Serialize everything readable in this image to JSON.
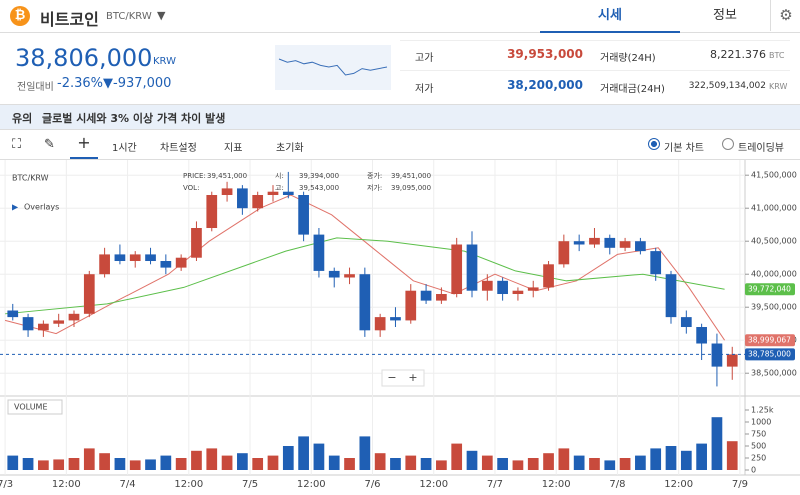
{
  "header": {
    "name": "비트코인",
    "pair": "BTC/KRW",
    "tabs": [
      "시세",
      "정보"
    ]
  },
  "summary": {
    "price": "38,806,000",
    "unit": "KRW",
    "change_label": "전일대비",
    "change_rate": "-2.36%",
    "change_amount": "▼-937,000",
    "sparkline": [
      39.2,
      39.1,
      39.15,
      39.05,
      39.1,
      39.0,
      38.95,
      39.0,
      38.7,
      38.75,
      38.9,
      38.85,
      38.9,
      38.95
    ],
    "stats": [
      {
        "label": "고가",
        "value": "39,953,000"
      },
      {
        "label": "저가",
        "value": "38,200,000"
      },
      {
        "label": "거래량(24H)",
        "value": "8,221.376",
        "unit": "BTC"
      },
      {
        "label": "거래대금(24H)",
        "value": "322,509,134,002",
        "unit": "KRW"
      }
    ]
  },
  "notice": {
    "tag": "유의",
    "text": "글로벌 시세와 3% 이상 가격 차이 발생"
  },
  "toolbar": {
    "interval": "1시간",
    "items": [
      "차트설정",
      "지표",
      "초기화"
    ],
    "modes": [
      "기본 차트",
      "트레이딩뷰"
    ]
  },
  "chart_data": {
    "type": "candlestick",
    "title": "BTC/KRW",
    "overlays_label": "Overlays",
    "volume_label": "VOLUME",
    "readout": [
      {
        "label": "PRICE:",
        "value": "39,451,000"
      },
      {
        "label": "시:",
        "value": "39,394,000"
      },
      {
        "label": "종가:",
        "value": "39,451,000"
      },
      {
        "label": "VOL:"
      },
      {
        "label": "고:",
        "value": "39,543,000"
      },
      {
        "label": "저가:",
        "value": "39,095,000"
      }
    ],
    "up_color": "#c84a3c",
    "down_color": "#1f5fb4",
    "x": [
      0,
      3,
      6,
      9,
      12,
      15,
      18,
      21,
      24,
      27,
      30,
      33,
      36,
      39,
      42,
      45,
      48,
      51,
      54,
      57,
      60,
      63,
      66,
      69,
      72,
      75,
      78,
      81,
      84,
      87,
      90,
      93,
      96,
      99,
      102,
      105,
      108,
      111,
      114,
      117,
      120,
      123,
      126,
      129,
      132,
      135,
      138,
      141
    ],
    "open": [
      39450000,
      39350000,
      39150000,
      39250000,
      39300000,
      39400000,
      40000000,
      40300000,
      40200000,
      40300000,
      40200000,
      40100000,
      40250000,
      40700000,
      41200000,
      41300000,
      41000000,
      41200000,
      41250000,
      41200000,
      40600000,
      40050000,
      39950000,
      40000000,
      39150000,
      39350000,
      39300000,
      39750000,
      39600000,
      39700000,
      40450000,
      39750000,
      39900000,
      39700000,
      39750000,
      39800000,
      40150000,
      40500000,
      40450000,
      40550000,
      40400000,
      40500000,
      40350000,
      40000000,
      39350000,
      39200000,
      38950000,
      38600000
    ],
    "high": [
      39550000,
      39400000,
      39300000,
      39400000,
      39450000,
      40050000,
      40400000,
      40450000,
      40350000,
      40400000,
      40300000,
      40300000,
      40800000,
      41250000,
      41400000,
      41350000,
      41250000,
      41350000,
      41550000,
      41250000,
      40700000,
      40100000,
      40100000,
      40100000,
      39400000,
      39500000,
      39850000,
      39850000,
      39800000,
      40550000,
      40650000,
      40000000,
      39950000,
      39800000,
      39900000,
      40200000,
      40600000,
      40600000,
      40700000,
      40600000,
      40550000,
      40550000,
      40400000,
      40050000,
      39450000,
      39250000,
      39100000,
      38900000
    ],
    "low": [
      39300000,
      39050000,
      39050000,
      39200000,
      39200000,
      39350000,
      39950000,
      40150000,
      40100000,
      40150000,
      40000000,
      40050000,
      40200000,
      40650000,
      41100000,
      40900000,
      40950000,
      41100000,
      41150000,
      40500000,
      39950000,
      39800000,
      39850000,
      39050000,
      39050000,
      39200000,
      39250000,
      39550000,
      39550000,
      39650000,
      39650000,
      39600000,
      39600000,
      39600000,
      39650000,
      39750000,
      40100000,
      40350000,
      40400000,
      40300000,
      40350000,
      40300000,
      39900000,
      39250000,
      39100000,
      38700000,
      38300000,
      38400000
    ],
    "close": [
      39350000,
      39150000,
      39250000,
      39300000,
      39400000,
      40000000,
      40300000,
      40200000,
      40300000,
      40200000,
      40100000,
      40250000,
      40700000,
      41200000,
      41300000,
      41000000,
      41200000,
      41250000,
      41200000,
      40600000,
      40050000,
      39950000,
      40000000,
      39150000,
      39350000,
      39300000,
      39750000,
      39600000,
      39700000,
      40450000,
      39750000,
      39900000,
      39700000,
      39750000,
      39800000,
      40150000,
      40500000,
      40450000,
      40550000,
      40400000,
      40500000,
      40350000,
      40000000,
      39350000,
      39200000,
      38950000,
      38600000,
      38785000
    ],
    "volume": [
      300,
      250,
      200,
      220,
      250,
      450,
      350,
      250,
      200,
      220,
      300,
      250,
      400,
      450,
      300,
      350,
      250,
      300,
      500,
      700,
      550,
      300,
      250,
      700,
      350,
      250,
      300,
      250,
      200,
      550,
      400,
      300,
      250,
      200,
      250,
      350,
      450,
      300,
      250,
      200,
      250,
      300,
      450,
      500,
      400,
      550,
      1100,
      600
    ],
    "lines": [
      {
        "color": "#e0736a",
        "x": [
          0,
          10,
          22,
          32,
          40,
          50,
          56,
          64,
          72,
          80,
          88,
          96,
          104,
          112,
          120,
          128,
          134,
          141
        ],
        "values": [
          39300000,
          39100000,
          39600000,
          40000000,
          40500000,
          41000000,
          41200000,
          40900000,
          40400000,
          39900000,
          39700000,
          40000000,
          39750000,
          39900000,
          40300000,
          40400000,
          39800000,
          39000000
        ]
      },
      {
        "color": "#5cbf4a",
        "x": [
          0,
          20,
          35,
          55,
          65,
          75,
          90,
          100,
          110,
          125,
          141
        ],
        "values": [
          39400000,
          39550000,
          39800000,
          40350000,
          40550000,
          40500000,
          40350000,
          40050000,
          39900000,
          40000000,
          39772040
        ]
      }
    ],
    "xlim": [
      -1,
      145
    ],
    "xticks": [
      {
        "value": 0,
        "label": "7/3"
      },
      {
        "value": 12,
        "label": "12:00"
      },
      {
        "value": 24,
        "label": "7/4"
      },
      {
        "value": 36,
        "label": "12:00"
      },
      {
        "value": 48,
        "label": "7/5"
      },
      {
        "value": 60,
        "label": "12:00"
      },
      {
        "value": 72,
        "label": "7/6"
      },
      {
        "value": 84,
        "label": "12:00"
      },
      {
        "value": 96,
        "label": "7/7"
      },
      {
        "value": 108,
        "label": "12:00"
      },
      {
        "value": 120,
        "label": "7/8"
      },
      {
        "value": 132,
        "label": "12:00"
      },
      {
        "value": 144,
        "label": "7/9"
      }
    ],
    "ylim": [
      38170000,
      41700000
    ],
    "yticks": [
      {
        "value": 41500000,
        "label": "41,500,000"
      },
      {
        "value": 41000000,
        "label": "41,000,000"
      },
      {
        "value": 40500000,
        "label": "40,500,000"
      },
      {
        "value": 40000000,
        "label": "40,000,000"
      },
      {
        "value": 39500000,
        "label": "39,500,000"
      },
      {
        "value": 39000000,
        "label": "39,000,000"
      },
      {
        "value": 38500000,
        "label": "38,500,000"
      }
    ],
    "volume_ylim": [
      0,
      1500
    ],
    "volume_yticks": [
      {
        "value": 1250,
        "label": "1.25k"
      },
      1000,
      750,
      500,
      250,
      0
    ],
    "price_tags": [
      {
        "value": 39772040,
        "label": "39,772,040",
        "color": "#5cbf4a"
      },
      {
        "value": 38999067,
        "label": "38,999,067",
        "color": "#e0736a"
      },
      {
        "value": 38785000,
        "label": "38,785,000",
        "color": "#1f5fb4"
      }
    ],
    "grid": true
  }
}
